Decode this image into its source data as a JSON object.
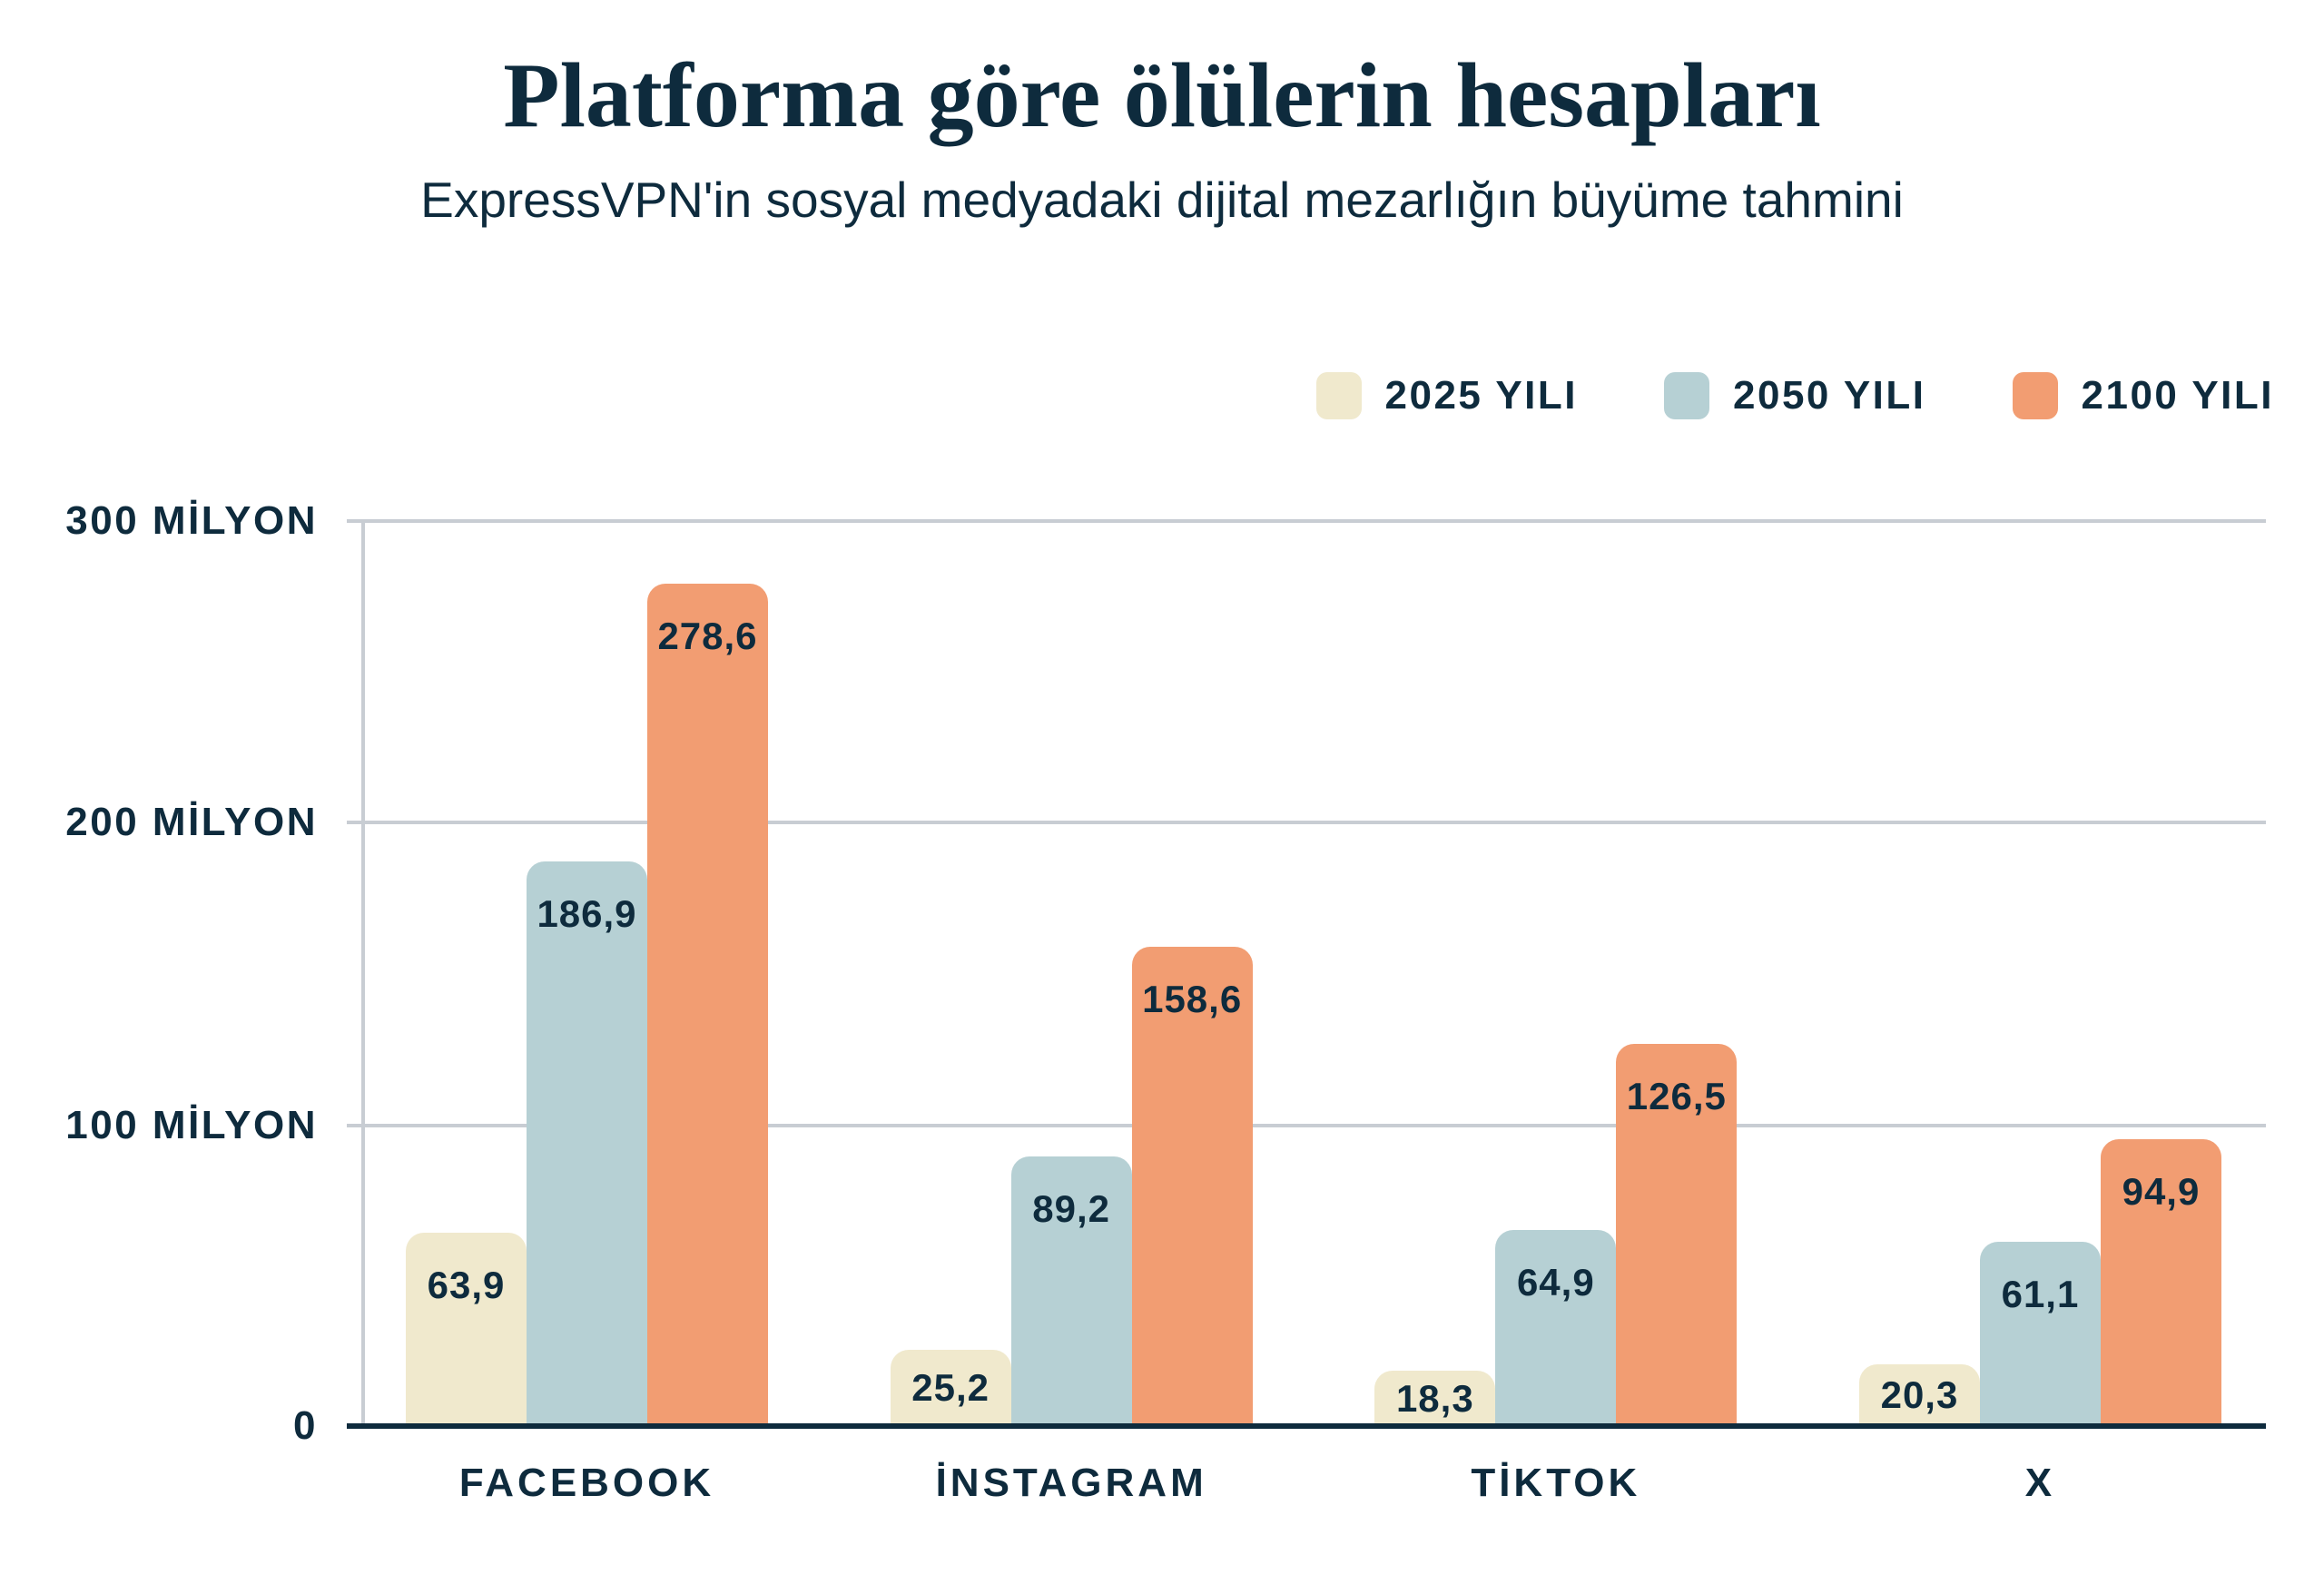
{
  "header": {
    "title": "Platforma göre ölülerin hesapları",
    "subtitle": "ExpressVPN'in sosyal medyadaki dijital mezarlığın büyüme tahmini"
  },
  "colors": {
    "navy_text": "#0e2b3d",
    "grid_gray": "#c8cdd3",
    "background": "#ffffff",
    "series_2025": "#f0e9cd",
    "series_2050": "#b6d0d4",
    "series_2100": "#f29d72"
  },
  "chart_data": {
    "type": "bar",
    "title": "Platforma göre ölülerin hesapları",
    "subtitle": "ExpressVPN'in sosyal medyadaki dijital mezarlığın büyüme tahmini",
    "categories": [
      "FACEBOOK",
      "İNSTAGRAM",
      "TİKTOK",
      "X"
    ],
    "series": [
      {
        "name": "2025 YILI",
        "color": "#f0e9cd",
        "values": [
          63.9,
          25.2,
          18.3,
          20.3
        ]
      },
      {
        "name": "2050 YILI",
        "color": "#b6d0d4",
        "values": [
          186.9,
          89.2,
          64.9,
          61.1
        ]
      },
      {
        "name": "2100 YILI",
        "color": "#f29d72",
        "values": [
          278.6,
          158.6,
          126.5,
          94.9
        ]
      }
    ],
    "value_labels": [
      [
        "63,9",
        "25,2",
        "18,3",
        "20,3"
      ],
      [
        "186,9",
        "89,2",
        "64,9",
        "61,1"
      ],
      [
        "278,6",
        "158,6",
        "126,5",
        "94,9"
      ]
    ],
    "y_axis_labels": [
      "300 MİLYON",
      "200 MİLYON",
      "100 MİLYON",
      "0"
    ],
    "ylim": [
      0,
      300
    ],
    "unit": "milyon hesap",
    "grid": "horizontal",
    "legend_position": "top-right"
  }
}
